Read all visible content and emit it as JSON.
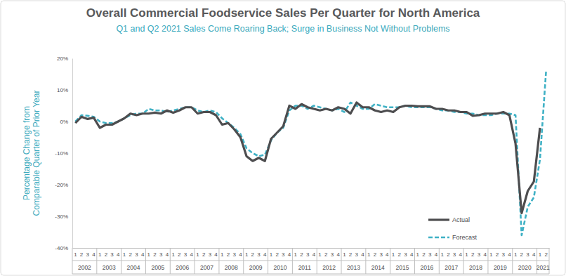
{
  "chart_data": {
    "type": "line",
    "title": "Overall Commercial Foodservice Sales Per Quarter for North America",
    "subtitle": "Q1 and Q2 2021 Sales Come Roaring Back; Surge in Business Not Without Problems",
    "ylabel": [
      "Percentage Change from",
      "Comparable Quarter of Prior Year"
    ],
    "categories": [
      "1",
      "2",
      "3",
      "4",
      "1",
      "2",
      "3",
      "4",
      "1",
      "2",
      "3",
      "4",
      "1",
      "2",
      "3",
      "4",
      "1",
      "2",
      "3",
      "4",
      "1",
      "2",
      "3",
      "4",
      "1",
      "2",
      "3",
      "4",
      "1",
      "2",
      "3",
      "4",
      "1",
      "2",
      "3",
      "4",
      "1",
      "2",
      "3",
      "4",
      "1",
      "2",
      "3",
      "4",
      "1",
      "2",
      "3",
      "4",
      "1",
      "2",
      "3",
      "4",
      "1",
      "2",
      "3",
      "4",
      "1",
      "2",
      "3",
      "4",
      "1",
      "2",
      "3",
      "4",
      "1",
      "2",
      "3",
      "4",
      "1",
      "2",
      "3",
      "4",
      "1",
      "2",
      "3",
      "4",
      "1",
      "2"
    ],
    "category_groups": [
      {
        "label": "2002",
        "size": 4
      },
      {
        "label": "2003",
        "size": 4
      },
      {
        "label": "2004",
        "size": 4
      },
      {
        "label": "2005",
        "size": 4
      },
      {
        "label": "2006",
        "size": 4
      },
      {
        "label": "2007",
        "size": 4
      },
      {
        "label": "2008",
        "size": 4
      },
      {
        "label": "2009",
        "size": 4
      },
      {
        "label": "2010",
        "size": 4
      },
      {
        "label": "2011",
        "size": 4
      },
      {
        "label": "2012",
        "size": 4
      },
      {
        "label": "2013",
        "size": 4
      },
      {
        "label": "2014",
        "size": 4
      },
      {
        "label": "2015",
        "size": 4
      },
      {
        "label": "2016",
        "size": 4
      },
      {
        "label": "2017",
        "size": 4
      },
      {
        "label": "2018",
        "size": 4
      },
      {
        "label": "2019",
        "size": 4
      },
      {
        "label": "2020",
        "size": 4
      },
      {
        "label": "2021",
        "size": 2
      }
    ],
    "series": [
      {
        "name": "Actual",
        "color": "#4d4d4f",
        "line_style": "solid",
        "values": [
          -0.5,
          1.5,
          0.8,
          1.2,
          -2,
          -1,
          -1,
          0,
          1,
          2.5,
          2,
          2.5,
          2.5,
          2.8,
          2.5,
          3.5,
          2.8,
          3.5,
          4.5,
          4.5,
          2.5,
          3,
          3,
          2,
          -1,
          -0.5,
          -2.5,
          -5,
          -11,
          -12.5,
          -11.5,
          -12.5,
          -5.5,
          -3.5,
          -1.5,
          5,
          4,
          5.5,
          4.5,
          4,
          3.5,
          4,
          3.5,
          4.5,
          4,
          2.5,
          6,
          4.5,
          4.5,
          3.5,
          3,
          3.5,
          3,
          4.5,
          5,
          5,
          4.8,
          4.8,
          4.8,
          4,
          4,
          3.5,
          3.5,
          3,
          3,
          1.8,
          2,
          2.5,
          2.5,
          2.5,
          3,
          2,
          -7,
          -29,
          -22,
          -19,
          -2,
          null
        ]
      },
      {
        "name": "Forecast",
        "color": "#3fb1c5",
        "line_style": "dashed",
        "values": [
          0,
          2,
          1.8,
          1.5,
          0,
          -0.5,
          -0.5,
          0,
          1,
          2,
          2.5,
          2.5,
          4,
          3.5,
          3.5,
          3,
          3.5,
          4,
          4.5,
          4.5,
          3.5,
          3,
          3.5,
          3,
          1,
          -0.5,
          -2,
          -4,
          -8.5,
          -10,
          -11,
          -10.5,
          -6,
          -3.5,
          -2,
          3.5,
          5,
          5,
          4,
          5,
          4.5,
          4,
          3.5,
          4,
          3,
          6,
          5,
          4,
          4,
          5.5,
          5,
          4.5,
          4.5,
          4.5,
          5,
          4.5,
          4.5,
          4.5,
          4.5,
          4,
          3.5,
          3.5,
          3,
          3,
          2.5,
          2.5,
          2,
          2,
          2,
          2.5,
          2.5,
          2.5,
          2,
          -36,
          -27,
          -24,
          -12,
          16
        ]
      }
    ],
    "ylim": [
      -40,
      20
    ],
    "yticks": [
      {
        "value": -40,
        "label": "-40%"
      },
      {
        "value": -30,
        "label": "-30%"
      },
      {
        "value": -20,
        "label": "-20%"
      },
      {
        "value": -10,
        "label": "-10%"
      },
      {
        "value": 0,
        "label": "0%"
      },
      {
        "value": 10,
        "label": "10%"
      },
      {
        "value": 20,
        "label": "20%"
      }
    ],
    "grid": false,
    "legend": "lower right"
  }
}
